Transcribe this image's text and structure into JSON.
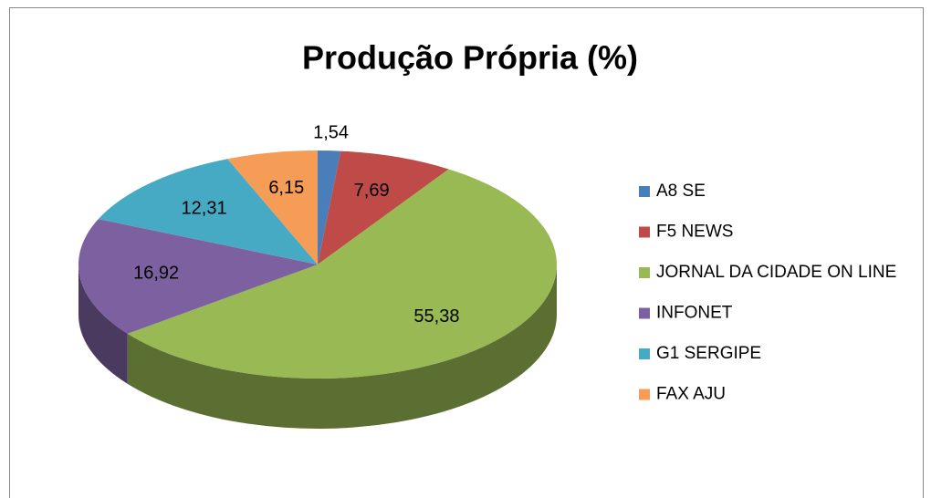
{
  "chart_data": {
    "type": "pie",
    "title": "Produção Própria (%)",
    "categories": [
      "A8 SE",
      "F5 NEWS",
      "JORNAL DA CIDADE ON LINE",
      "INFONET",
      "G1 SERGIPE",
      "FAX AJU"
    ],
    "values": [
      1.54,
      7.69,
      55.38,
      16.92,
      12.31,
      6.15
    ],
    "value_labels": [
      "1,54",
      "7,69",
      "55,38",
      "16,92",
      "12,31",
      "6,15"
    ],
    "colors": [
      "#4a7ebb",
      "#be4b48",
      "#98b954",
      "#7d60a0",
      "#46aac4",
      "#f59d56"
    ],
    "legend": "right"
  }
}
